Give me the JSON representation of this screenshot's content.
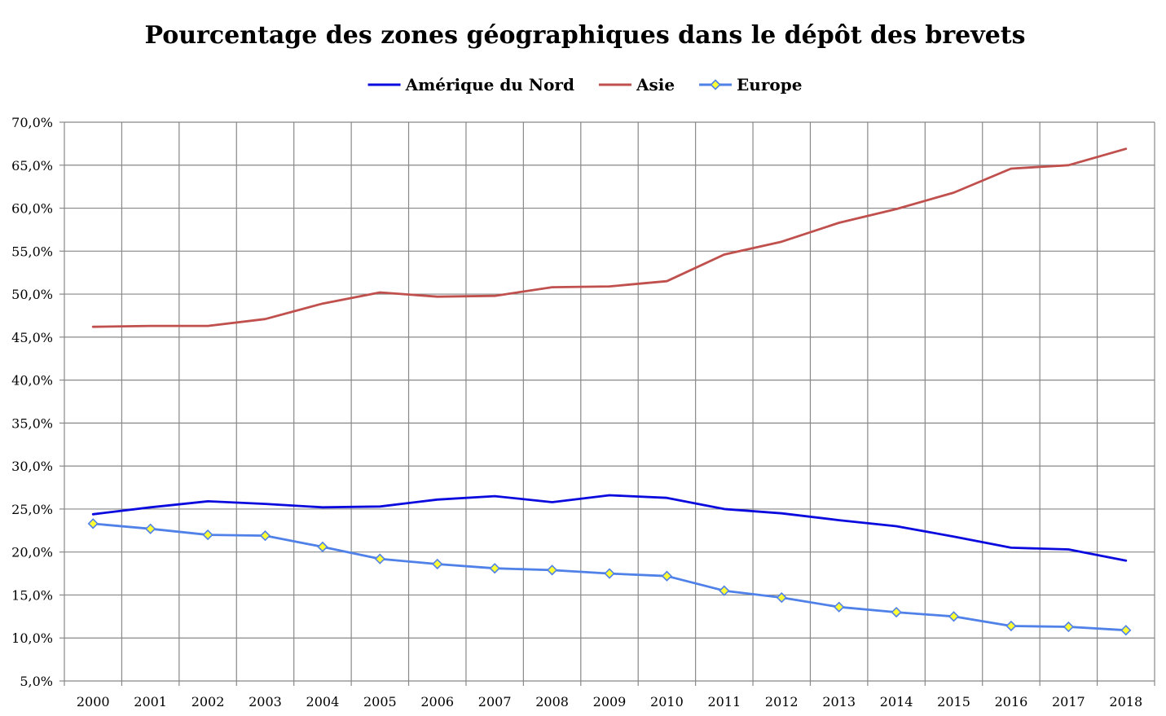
{
  "chart_data": {
    "type": "line",
    "title": "Pourcentage des zones géographiques dans le dépôt des brevets",
    "xlabel": "",
    "ylabel": "",
    "ylim": [
      5,
      70
    ],
    "y_tick_step": 5,
    "y_tick_format": "percent_one_decimal_comma",
    "grid": true,
    "legend_position": "top",
    "x": [
      "2000",
      "2001",
      "2002",
      "2003",
      "2004",
      "2005",
      "2006",
      "2007",
      "2008",
      "2009",
      "2010",
      "2011",
      "2012",
      "2013",
      "2014",
      "2015",
      "2016",
      "2017",
      "2018"
    ],
    "y_tick_labels": [
      "5,0%",
      "10,0%",
      "15,0%",
      "20,0%",
      "25,0%",
      "30,0%",
      "35,0%",
      "40,0%",
      "45,0%",
      "50,0%",
      "55,0%",
      "60,0%",
      "65,0%",
      "70,0%"
    ],
    "series": [
      {
        "name": "Amérique du Nord",
        "color": "#0a0adf",
        "marker": "none",
        "values": [
          24.4,
          25.2,
          25.9,
          25.6,
          25.2,
          25.3,
          26.1,
          26.5,
          25.8,
          26.6,
          26.3,
          25.0,
          24.5,
          23.7,
          23.0,
          21.8,
          20.5,
          20.3,
          19.0
        ]
      },
      {
        "name": "Asie",
        "color": "#c0504d",
        "marker": "none",
        "values": [
          46.2,
          46.3,
          46.3,
          47.1,
          48.9,
          50.2,
          49.7,
          49.8,
          50.8,
          50.9,
          51.5,
          54.6,
          56.1,
          58.3,
          59.9,
          61.8,
          64.6,
          65.0,
          66.9
        ]
      },
      {
        "name": "Europe",
        "color": "#4f81e8",
        "marker": "diamond",
        "marker_fill": "#ffff33",
        "values": [
          23.3,
          22.7,
          22.0,
          21.9,
          20.6,
          19.2,
          18.6,
          18.1,
          17.9,
          17.5,
          17.2,
          15.5,
          14.7,
          13.6,
          13.0,
          12.5,
          11.4,
          11.3,
          10.9
        ]
      }
    ]
  },
  "style": {
    "grid_color": "#888888",
    "background": "#ffffff"
  }
}
